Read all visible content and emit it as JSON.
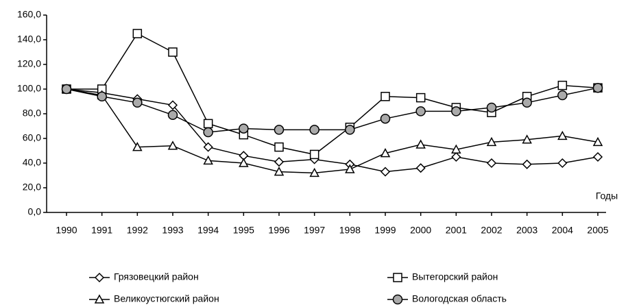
{
  "chart_data": {
    "type": "line",
    "x_label": "Годы",
    "categories": [
      "1990",
      "1991",
      "1992",
      "1993",
      "1994",
      "1995",
      "1996",
      "1997",
      "1998",
      "1999",
      "2000",
      "2001",
      "2002",
      "2003",
      "2004",
      "2005"
    ],
    "ylim": [
      0,
      160
    ],
    "yticks": [
      {
        "value": 0,
        "label": "0,0"
      },
      {
        "value": 20,
        "label": "20,0"
      },
      {
        "value": 40,
        "label": "40,0"
      },
      {
        "value": 60,
        "label": "60,0"
      },
      {
        "value": 80,
        "label": "80,0"
      },
      {
        "value": 100,
        "label": "100,0"
      },
      {
        "value": 120,
        "label": "120,0"
      },
      {
        "value": 140,
        "label": "140,0"
      },
      {
        "value": 160,
        "label": "160,0"
      }
    ],
    "series": [
      {
        "name": "Грязовецкий район",
        "color": "#000000",
        "marker": "diamond",
        "fill": "#ffffff",
        "values": [
          100,
          97,
          92,
          87,
          53,
          46,
          41,
          43,
          39,
          33,
          36,
          45,
          40,
          39,
          40,
          45
        ]
      },
      {
        "name": "Вытегорский район",
        "color": "#000000",
        "marker": "square",
        "fill": "#ffffff",
        "values": [
          100,
          100,
          145,
          130,
          72,
          63,
          53,
          47,
          69,
          94,
          93,
          85,
          81,
          94,
          103,
          101
        ]
      },
      {
        "name": "Великоустюгский район",
        "color": "#000000",
        "marker": "triangle",
        "fill": "#ffffff",
        "values": [
          100,
          95,
          53,
          54,
          42,
          40,
          33,
          32,
          35,
          48,
          55,
          51,
          57,
          59,
          62,
          57
        ]
      },
      {
        "name": "Вологодская область",
        "color": "#000000",
        "marker": "circle",
        "fill": "#aaaaaa",
        "values": [
          100,
          94,
          89,
          79,
          65,
          68,
          67,
          67,
          67,
          76,
          82,
          82,
          85,
          89,
          95,
          101
        ]
      }
    ]
  }
}
